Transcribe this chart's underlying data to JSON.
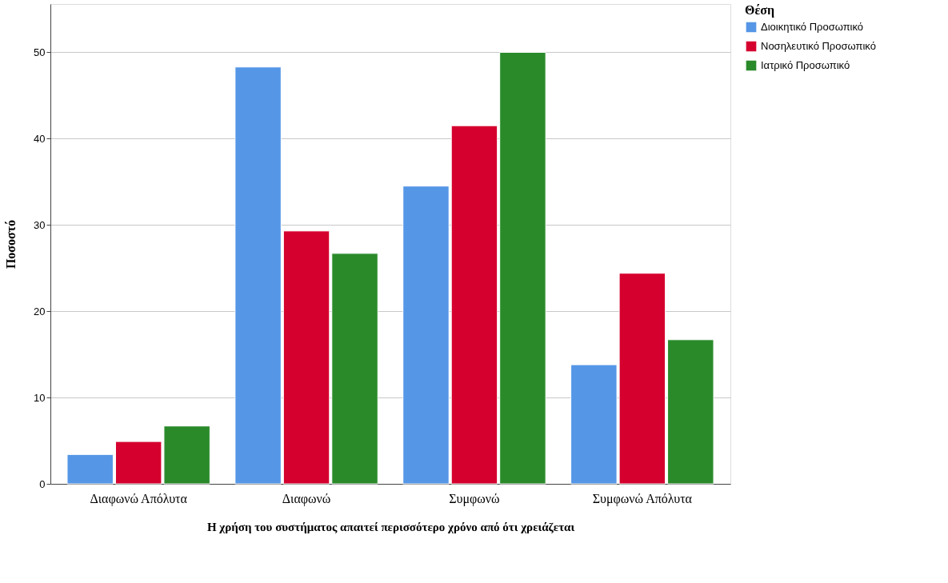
{
  "chart_data": {
    "type": "bar",
    "xlabel": "Η χρήση του συστήματος απαιτεί περισσότερο χρόνο από ότι χρειάζεται",
    "ylabel": "Ποσοστό",
    "legend_title": "Θέση",
    "categories": [
      "Διαφωνώ Απόλυτα",
      "Διαφωνώ",
      "Συμφωνώ",
      "Συμφωνώ Απόλυτα"
    ],
    "series": [
      {
        "name": "Διοικητικό Προσωπικό",
        "color": "#5596e6",
        "values": [
          3.4,
          48.3,
          34.5,
          13.8
        ]
      },
      {
        "name": "Νοσηλευτικό Προσωπικό",
        "color": "#d5002e",
        "values": [
          4.9,
          29.3,
          41.5,
          24.4
        ]
      },
      {
        "name": "Ιατρικό Προσωπικό",
        "color": "#2a8a2a",
        "values": [
          6.7,
          26.7,
          50.0,
          16.7
        ]
      }
    ],
    "ylim": [
      0,
      55.6
    ],
    "yticks": [
      0,
      10,
      20,
      30,
      40,
      50
    ],
    "grid": "y",
    "legend": "top right"
  }
}
